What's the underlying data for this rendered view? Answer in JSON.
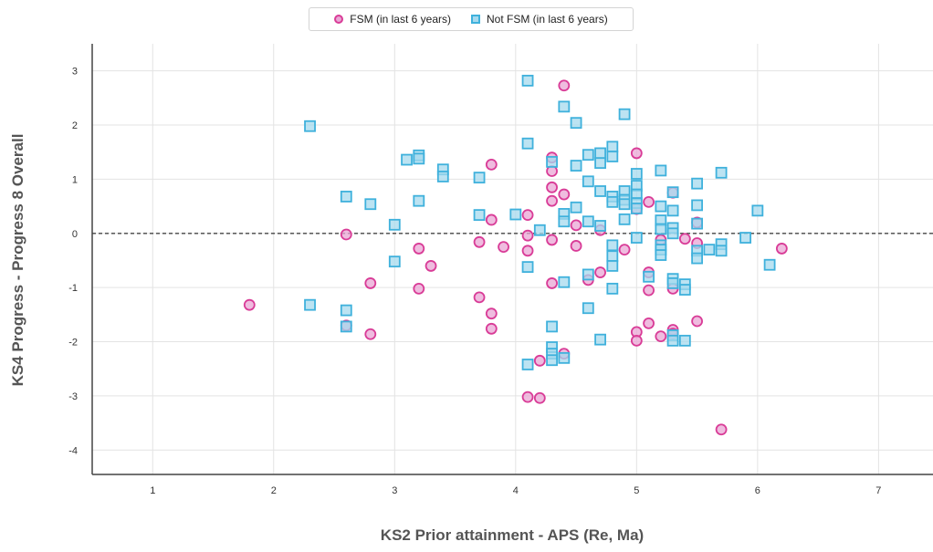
{
  "chart_data": {
    "type": "scatter",
    "title": "",
    "xlabel": "KS2 Prior attainment - APS (Re, Ma)",
    "ylabel": "KS4 Progress - Progress 8 Overall",
    "xlim": [
      0.5,
      7.45
    ],
    "ylim": [
      -4.45,
      3.5
    ],
    "x_ticks": [
      1,
      2,
      3,
      4,
      5,
      6,
      7
    ],
    "y_ticks": [
      3,
      2,
      1,
      0,
      -1,
      -2,
      -3,
      -4
    ],
    "grid": true,
    "reference_line": {
      "y": 0,
      "style": "dashed"
    },
    "legend_position": "top-center",
    "series": [
      {
        "name": "FSM (in last 6 years)",
        "marker": "circle",
        "fill": "#e9a6d4",
        "stroke": "#d93c97",
        "points": [
          [
            1.8,
            -1.32
          ],
          [
            2.6,
            -0.02
          ],
          [
            2.6,
            -1.7
          ],
          [
            2.8,
            -0.92
          ],
          [
            2.8,
            -1.86
          ],
          [
            3.2,
            -0.28
          ],
          [
            3.2,
            -1.02
          ],
          [
            3.3,
            -0.6
          ],
          [
            3.7,
            -1.18
          ],
          [
            3.7,
            -0.16
          ],
          [
            3.8,
            1.27
          ],
          [
            3.8,
            0.25
          ],
          [
            3.8,
            -1.48
          ],
          [
            3.8,
            -1.76
          ],
          [
            3.9,
            -0.25
          ],
          [
            4.1,
            0.34
          ],
          [
            4.1,
            -0.04
          ],
          [
            4.1,
            -0.32
          ],
          [
            4.1,
            -3.02
          ],
          [
            4.2,
            -3.04
          ],
          [
            4.2,
            -2.35
          ],
          [
            4.3,
            1.4
          ],
          [
            4.3,
            1.15
          ],
          [
            4.3,
            0.85
          ],
          [
            4.3,
            0.6
          ],
          [
            4.3,
            -0.12
          ],
          [
            4.3,
            -0.92
          ],
          [
            4.4,
            2.73
          ],
          [
            4.4,
            0.72
          ],
          [
            4.4,
            -2.22
          ],
          [
            4.5,
            0.15
          ],
          [
            4.5,
            -0.23
          ],
          [
            4.6,
            -0.86
          ],
          [
            4.7,
            0.06
          ],
          [
            4.7,
            -0.72
          ],
          [
            4.9,
            -0.3
          ],
          [
            5.0,
            1.48
          ],
          [
            5.0,
            0.45
          ],
          [
            5.0,
            -1.82
          ],
          [
            5.0,
            -1.98
          ],
          [
            5.1,
            0.58
          ],
          [
            5.1,
            -0.72
          ],
          [
            5.1,
            -1.05
          ],
          [
            5.1,
            -1.66
          ],
          [
            5.2,
            -0.12
          ],
          [
            5.2,
            -1.9
          ],
          [
            5.3,
            -1.78
          ],
          [
            5.3,
            -1.85
          ],
          [
            5.3,
            -1.02
          ],
          [
            5.3,
            0.75
          ],
          [
            5.4,
            -0.1
          ],
          [
            5.5,
            0.2
          ],
          [
            5.5,
            -0.18
          ],
          [
            5.5,
            -1.62
          ],
          [
            5.7,
            -3.62
          ],
          [
            6.2,
            -0.28
          ]
        ]
      },
      {
        "name": "Not FSM (in last 6 years)",
        "marker": "square",
        "fill": "#a6d9ee",
        "stroke": "#3fb1dc",
        "points": [
          [
            2.3,
            1.98
          ],
          [
            2.3,
            -1.32
          ],
          [
            2.6,
            0.68
          ],
          [
            2.6,
            -1.42
          ],
          [
            2.6,
            -1.72
          ],
          [
            2.8,
            0.54
          ],
          [
            3.0,
            0.16
          ],
          [
            3.0,
            -0.52
          ],
          [
            3.1,
            1.36
          ],
          [
            3.2,
            1.44
          ],
          [
            3.2,
            1.38
          ],
          [
            3.2,
            0.6
          ],
          [
            3.4,
            1.18
          ],
          [
            3.4,
            1.05
          ],
          [
            3.7,
            1.03
          ],
          [
            3.7,
            0.34
          ],
          [
            4.0,
            0.35
          ],
          [
            4.1,
            2.82
          ],
          [
            4.1,
            1.66
          ],
          [
            4.1,
            -0.62
          ],
          [
            4.1,
            -2.42
          ],
          [
            4.2,
            0.06
          ],
          [
            4.3,
            1.32
          ],
          [
            4.3,
            -1.72
          ],
          [
            4.3,
            -2.1
          ],
          [
            4.3,
            -2.22
          ],
          [
            4.3,
            -2.34
          ],
          [
            4.4,
            2.34
          ],
          [
            4.4,
            0.36
          ],
          [
            4.4,
            0.22
          ],
          [
            4.4,
            -0.9
          ],
          [
            4.4,
            -2.3
          ],
          [
            4.5,
            2.04
          ],
          [
            4.5,
            1.25
          ],
          [
            4.5,
            0.48
          ],
          [
            4.6,
            1.45
          ],
          [
            4.6,
            0.96
          ],
          [
            4.6,
            0.22
          ],
          [
            4.6,
            -0.76
          ],
          [
            4.6,
            -1.38
          ],
          [
            4.7,
            1.48
          ],
          [
            4.7,
            1.3
          ],
          [
            4.7,
            0.78
          ],
          [
            4.7,
            0.14
          ],
          [
            4.7,
            -1.96
          ],
          [
            4.8,
            1.6
          ],
          [
            4.8,
            1.42
          ],
          [
            4.8,
            0.68
          ],
          [
            4.8,
            0.58
          ],
          [
            4.8,
            -0.22
          ],
          [
            4.8,
            -0.42
          ],
          [
            4.8,
            -0.6
          ],
          [
            4.8,
            -1.02
          ],
          [
            4.9,
            2.2
          ],
          [
            4.9,
            0.78
          ],
          [
            4.9,
            0.62
          ],
          [
            4.9,
            0.54
          ],
          [
            4.9,
            0.26
          ],
          [
            5.0,
            1.1
          ],
          [
            5.0,
            0.88
          ],
          [
            5.0,
            0.72
          ],
          [
            5.0,
            0.56
          ],
          [
            5.0,
            0.46
          ],
          [
            5.0,
            -0.08
          ],
          [
            5.1,
            -0.8
          ],
          [
            5.2,
            1.16
          ],
          [
            5.2,
            0.5
          ],
          [
            5.2,
            0.24
          ],
          [
            5.2,
            0.08
          ],
          [
            5.2,
            -0.22
          ],
          [
            5.2,
            -0.3
          ],
          [
            5.2,
            -0.4
          ],
          [
            5.3,
            0.76
          ],
          [
            5.3,
            0.42
          ],
          [
            5.3,
            0.1
          ],
          [
            5.3,
            0.0
          ],
          [
            5.3,
            -0.84
          ],
          [
            5.3,
            -0.92
          ],
          [
            5.3,
            -1.88
          ],
          [
            5.3,
            -1.98
          ],
          [
            5.4,
            -0.94
          ],
          [
            5.4,
            -1.04
          ],
          [
            5.4,
            -1.98
          ],
          [
            5.5,
            0.92
          ],
          [
            5.5,
            0.52
          ],
          [
            5.5,
            0.18
          ],
          [
            5.5,
            -0.32
          ],
          [
            5.5,
            -0.46
          ],
          [
            5.6,
            -0.3
          ],
          [
            5.7,
            1.12
          ],
          [
            5.7,
            -0.2
          ],
          [
            5.7,
            -0.32
          ],
          [
            5.9,
            -0.08
          ],
          [
            6.0,
            0.42
          ],
          [
            6.1,
            -0.58
          ]
        ]
      }
    ]
  }
}
